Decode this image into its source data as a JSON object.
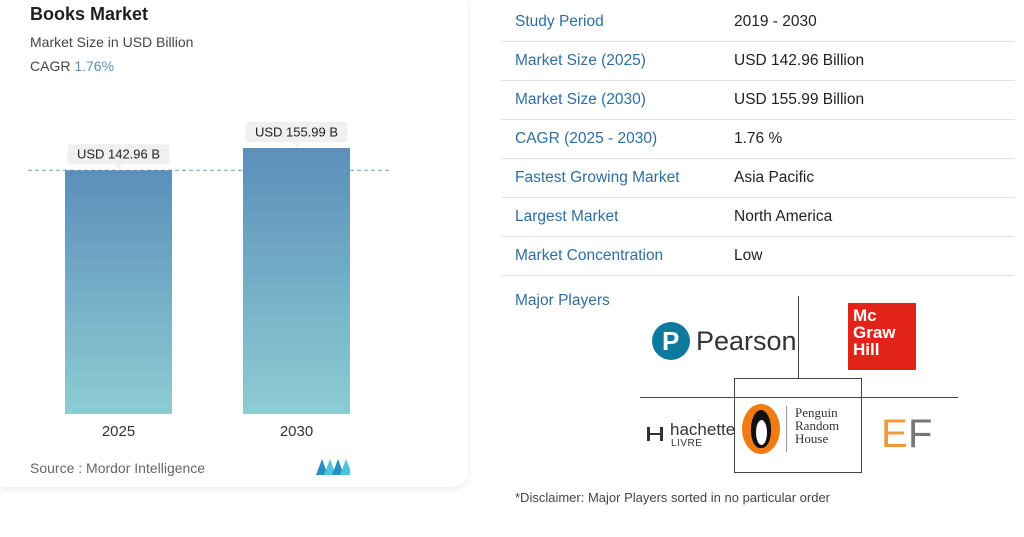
{
  "header": {
    "title": "Books Market",
    "subtitle": "Market Size in USD Billion",
    "cagr_label": "CAGR",
    "cagr_value": "1.76%"
  },
  "chart_data": {
    "type": "bar",
    "categories": [
      "2025",
      "2030"
    ],
    "values": [
      142.96,
      155.99
    ],
    "data_labels": [
      "USD 142.96 B",
      "USD 155.99 B"
    ],
    "ylim": [
      0,
      160
    ],
    "reference_line": 142.96,
    "colors": {
      "bar_top": "#5b8fba",
      "bar_bottom": "#8dccd3",
      "reference_line": "#6d9fc4"
    }
  },
  "source": {
    "text": "Source :  Mordor Intelligence"
  },
  "table": [
    {
      "key": "Study Period",
      "value": "2019 - 2030"
    },
    {
      "key": "Market Size (2025)",
      "value": "USD 142.96 Billion"
    },
    {
      "key": "Market Size (2030)",
      "value": "USD 155.99 Billion"
    },
    {
      "key": "CAGR (2025 - 2030)",
      "value": "1.76 %"
    },
    {
      "key": "Fastest Growing Market",
      "value": "Asia Pacific"
    },
    {
      "key": "Largest Market",
      "value": "North America"
    },
    {
      "key": "Market Concentration",
      "value": "Low"
    }
  ],
  "players": {
    "label": "Major Players",
    "pearson": "Pearson",
    "mcgraw": [
      "Mc",
      "Graw",
      "Hill"
    ],
    "hachette": "hachette",
    "hachette_sub": "LIVRE",
    "prh": [
      "Penguin",
      "Random",
      "House"
    ],
    "ef_e": "E",
    "ef_f": "F"
  },
  "disclaimer": "*Disclaimer: Major Players sorted in no particular order"
}
